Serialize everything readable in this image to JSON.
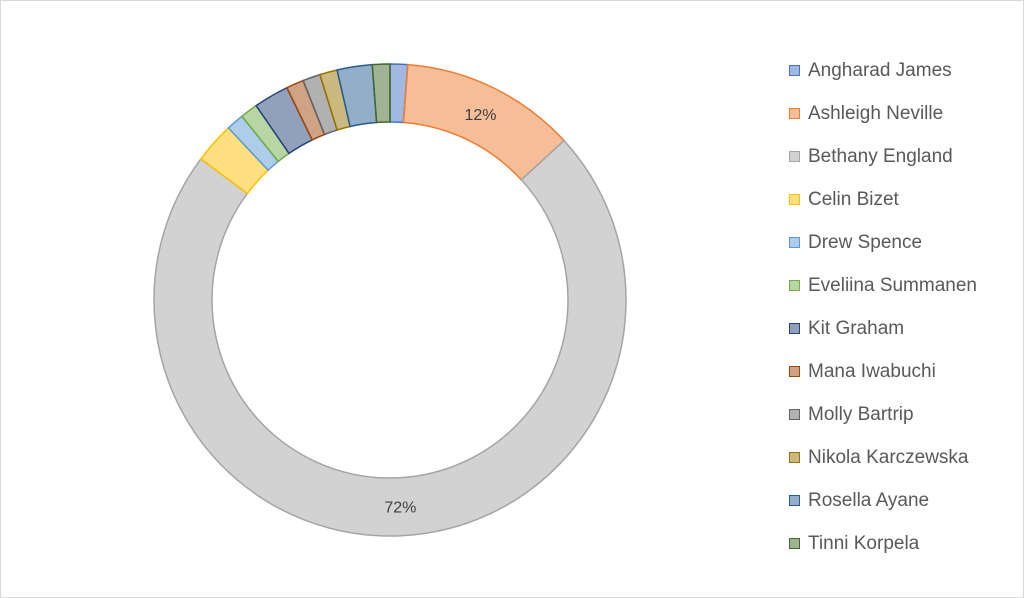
{
  "chart_data": {
    "type": "pie",
    "variant": "donut",
    "title": "",
    "legend_position": "right",
    "categories": [
      "Angharad James",
      "Ashleigh Neville",
      "Bethany England",
      "Celin Bizet",
      "Drew Spence",
      "Eveliina Summanen",
      "Kit Graham",
      "Mana Iwabuchi",
      "Molly Bartrip",
      "Nikola Karczewska",
      "Rosella Ayane",
      "Tinni Korpela"
    ],
    "values": [
      1.2,
      12,
      72,
      2.8,
      1.2,
      1.2,
      2.4,
      1.2,
      1.2,
      1.2,
      2.4,
      1.2
    ],
    "data_labels": [
      "",
      "12%",
      "72%",
      "",
      "",
      "",
      "",
      "",
      "",
      "",
      "",
      ""
    ],
    "colors": [
      "#4472C4",
      "#ED7D31",
      "#A5A5A5",
      "#FFC000",
      "#5B9BD5",
      "#70AD47",
      "#264478",
      "#9E480E",
      "#636363",
      "#997300",
      "#255E91",
      "#43682B"
    ]
  }
}
